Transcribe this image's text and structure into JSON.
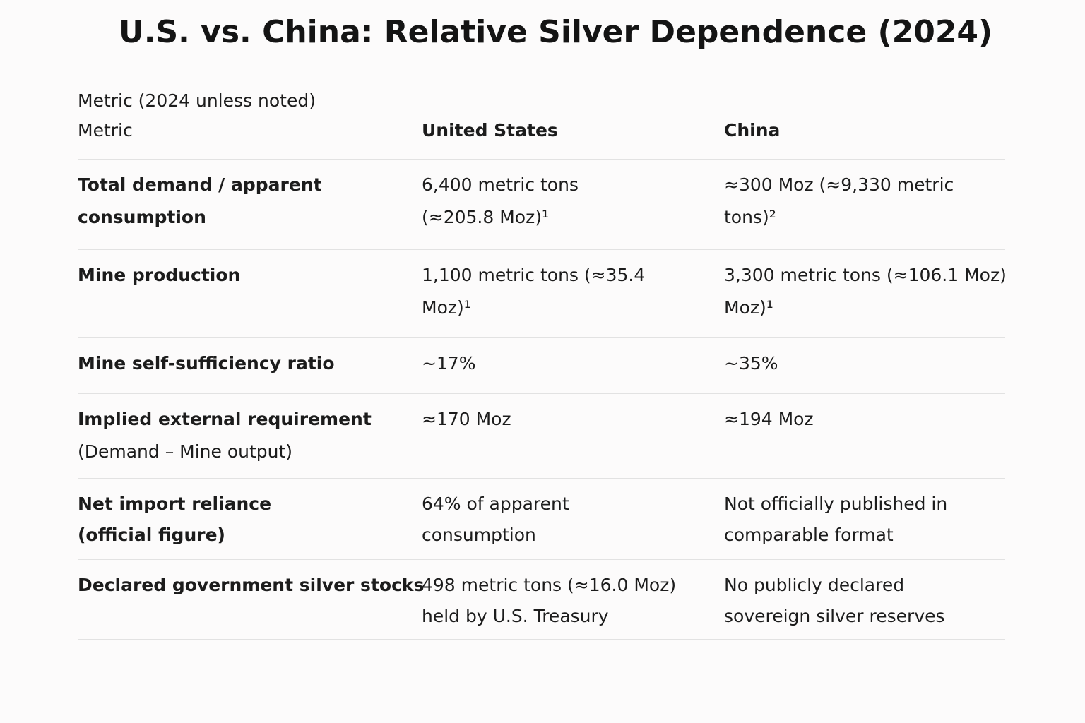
{
  "title": "U.S. vs. China: Relative Silver Dependence (2024)",
  "table": {
    "caption": "Metric (2024 unless noted)",
    "header": [
      "Metric",
      "United States",
      "China"
    ],
    "rows": [
      {
        "metric": [
          "Total demand / apparent",
          "consumption"
        ],
        "us": [
          "6,400 metric tons",
          "(≈205.8 Moz)¹"
        ],
        "china": [
          "≈300 Moz (≈9,330 metric",
          "tons)²"
        ]
      },
      {
        "metric": [
          "Mine production"
        ],
        "us": [
          "1,100 metric tons (≈35.4",
          "Moz)¹"
        ],
        "china": [
          "3,300 metric tons (≈106.1 Moz)",
          "Moz)¹"
        ]
      },
      {
        "metric": [
          "Mine self-sufficiency ratio"
        ],
        "us": [
          "~17%"
        ],
        "china": [
          "~35%"
        ]
      },
      {
        "metric": [
          "Implied external requirement"
        ],
        "metric_note": "(Demand – Mine output)",
        "us": [
          "≈170 Moz"
        ],
        "china": [
          "≈194 Moz"
        ]
      },
      {
        "metric": [
          "Net import reliance",
          "(official figure)"
        ],
        "us": [
          "64% of apparent",
          "consumption"
        ],
        "china": [
          "Not officially published in",
          "comparable format"
        ]
      },
      {
        "metric": [
          "Declared government silver stocks"
        ],
        "us": [
          "498 metric tons (≈16.0 Moz)",
          "held by U.S. Treasury"
        ],
        "china": [
          "No publicly declared",
          "sovereign silver reserves"
        ]
      }
    ]
  }
}
